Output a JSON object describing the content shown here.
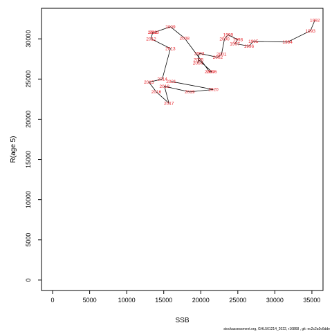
{
  "footer_text": "stockassessment.org, GHL561214_2022, r16868 , git: ec2c2a0c6dde",
  "colors": {
    "label": "#e8242b",
    "path": "#000000",
    "frame": "#000000"
  },
  "chart_data": {
    "type": "line",
    "xlabel": "SSB",
    "ylabel": "R(age 5)",
    "xlim": [
      -1500,
      36500
    ],
    "ylim": [
      -1300,
      33800
    ],
    "x_ticks": [
      0,
      5000,
      10000,
      15000,
      20000,
      25000,
      30000,
      35000
    ],
    "x_tick_labels": [
      "0",
      "5000",
      "10000",
      "15000",
      "20000",
      "25000",
      "30000",
      "35000"
    ],
    "y_ticks": [
      0,
      5000,
      10000,
      15000,
      20000,
      25000,
      30000
    ],
    "y_tick_labels": [
      "0",
      "5000",
      "10000",
      "15000",
      "20000",
      "25000",
      "30000"
    ],
    "grid": false,
    "points": [
      {
        "label": "1992",
        "x": 35400,
        "y": 32300
      },
      {
        "label": "1993",
        "x": 34800,
        "y": 31000
      },
      {
        "label": "1994",
        "x": 31700,
        "y": 29600
      },
      {
        "label": "1995",
        "x": 27100,
        "y": 29700
      },
      {
        "label": "1996",
        "x": 26500,
        "y": 29100
      },
      {
        "label": "1997",
        "x": 24600,
        "y": 29400
      },
      {
        "label": "1998",
        "x": 25000,
        "y": 29900
      },
      {
        "label": "1999",
        "x": 23700,
        "y": 30500
      },
      {
        "label": "2000",
        "x": 23200,
        "y": 30000
      },
      {
        "label": "2001",
        "x": 22800,
        "y": 28100
      },
      {
        "label": "2002",
        "x": 22300,
        "y": 27700
      },
      {
        "label": "2003",
        "x": 19800,
        "y": 28200
      },
      {
        "label": "2004",
        "x": 19600,
        "y": 27000
      },
      {
        "label": "2005",
        "x": 19700,
        "y": 27400
      },
      {
        "label": "2006",
        "x": 21500,
        "y": 25900
      },
      {
        "label": "2007",
        "x": 21200,
        "y": 25900
      },
      {
        "label": "2008",
        "x": 17800,
        "y": 30100
      },
      {
        "label": "2009",
        "x": 15900,
        "y": 31500
      },
      {
        "label": "2010",
        "x": 13700,
        "y": 30800
      },
      {
        "label": "2011",
        "x": 13500,
        "y": 30800
      },
      {
        "label": "2012",
        "x": 13300,
        "y": 30000
      },
      {
        "label": "2013",
        "x": 15900,
        "y": 28800
      },
      {
        "label": "2014",
        "x": 14800,
        "y": 25000
      },
      {
        "label": "2015",
        "x": 13000,
        "y": 24600
      },
      {
        "label": "2016",
        "x": 14000,
        "y": 23400
      },
      {
        "label": "2017",
        "x": 15700,
        "y": 22000
      },
      {
        "label": "2018",
        "x": 15100,
        "y": 24100
      },
      {
        "label": "2019",
        "x": 18500,
        "y": 23400
      },
      {
        "label": "2020",
        "x": 21700,
        "y": 23700
      },
      {
        "label": "2021",
        "x": 16000,
        "y": 24700
      }
    ]
  }
}
